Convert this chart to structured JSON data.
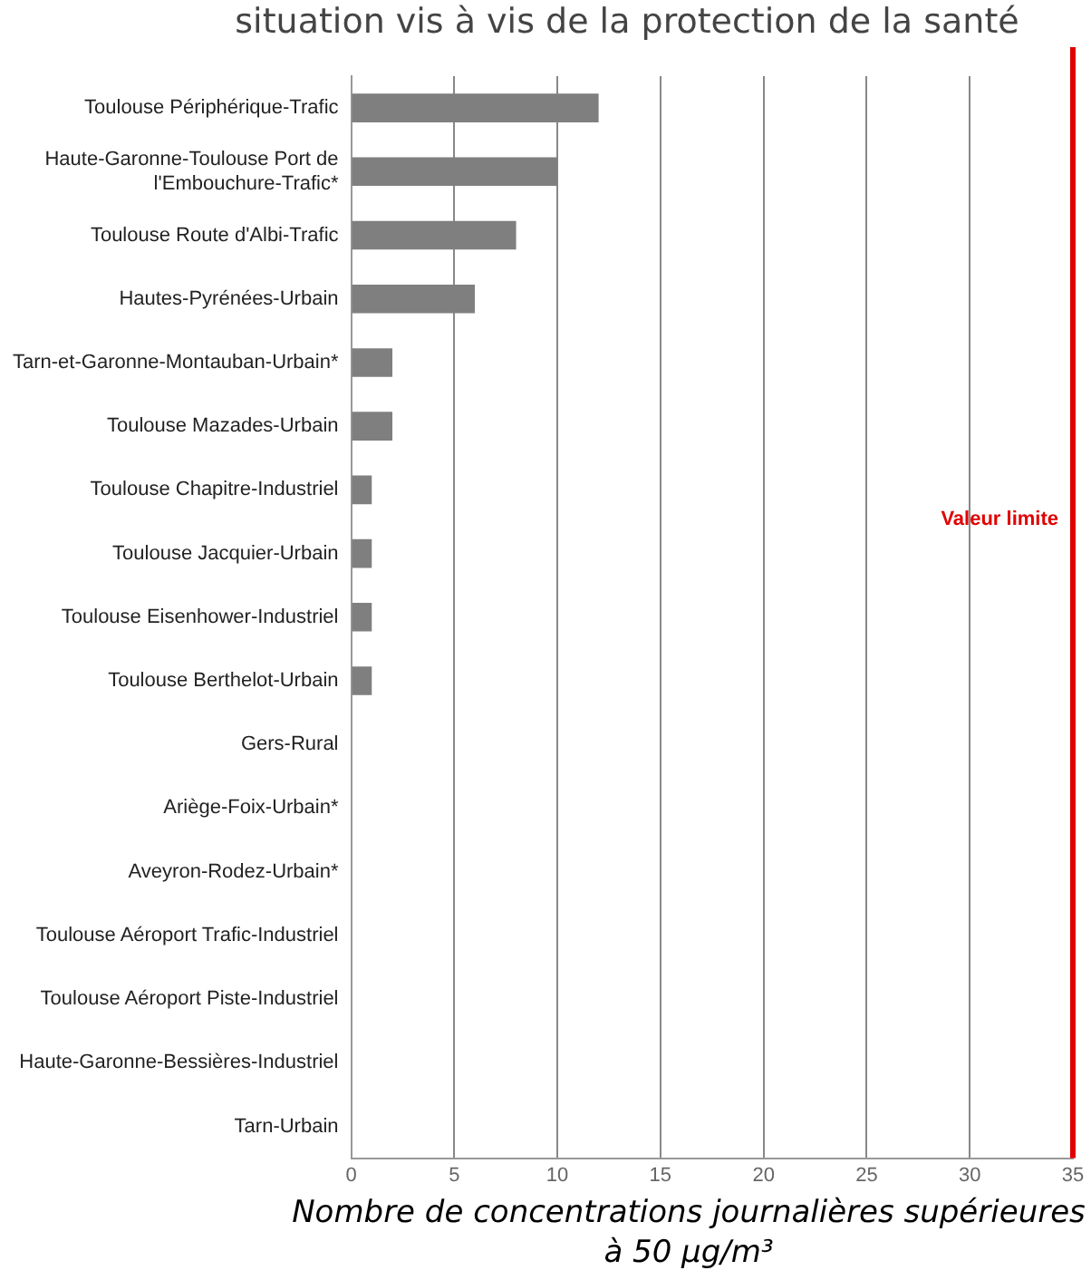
{
  "chart_data": {
    "type": "bar",
    "orientation": "horizontal",
    "title": "situation vis à vis de la protection de la santé",
    "xlabel": "Nombre de concentrations journalières supérieures à 50 µg/m³",
    "categories": [
      "Toulouse Périphérique-Trafic",
      "Haute-Garonne-Toulouse Port de l'Embouchure-Trafic*",
      "Toulouse Route d'Albi-Trafic",
      "Hautes-Pyrénées-Urbain",
      "Tarn-et-Garonne-Montauban-Urbain*",
      "Toulouse Mazades-Urbain",
      "Toulouse Chapitre-Industriel",
      "Toulouse Jacquier-Urbain",
      "Toulouse Eisenhower-Industriel",
      "Toulouse Berthelot-Urbain",
      "Gers-Rural",
      "Ariège-Foix-Urbain*",
      "Aveyron-Rodez-Urbain*",
      "Toulouse Aéroport Trafic-Industriel",
      "Toulouse Aéroport Piste-Industriel",
      "Haute-Garonne-Bessières-Industriel",
      "Tarn-Urbain"
    ],
    "values": [
      12,
      10,
      8,
      6,
      2,
      2,
      1,
      1,
      1,
      1,
      0,
      0,
      0,
      0,
      0,
      0,
      0
    ],
    "color": "#7f7f7f",
    "xlim": [
      0,
      35
    ],
    "xticks": [
      0,
      5,
      10,
      15,
      20,
      25,
      30,
      35
    ],
    "grid": "x",
    "ref_lines": [
      {
        "axis": "x",
        "value": 35,
        "label": "Valeur limite",
        "color": "#e00000"
      }
    ]
  }
}
